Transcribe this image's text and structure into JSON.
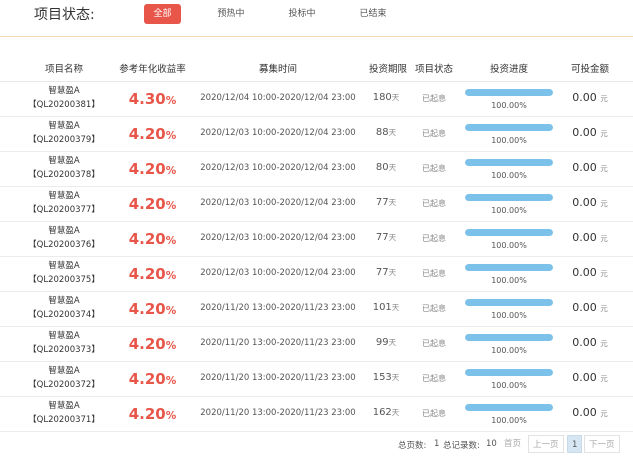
{
  "filter": {
    "label": "项目状态:",
    "options": [
      "全部",
      "预热中",
      "投标中",
      "已结束"
    ],
    "active": "全部"
  },
  "table": {
    "headers": [
      "项目名称",
      "参考年化收益率",
      "募集时间",
      "投资期限",
      "项目状态",
      "投资进度",
      "可投金额"
    ],
    "rows": [
      {
        "name": "智慧盈A",
        "code": "【QL20200381】",
        "rate": "4.30",
        "rate_unit": "%",
        "time": "2020/12/04 10:00-2020/12/04 23:00",
        "period": "180",
        "period_unit": "天",
        "status": "已起息",
        "progress": 100,
        "progress_text": "100.00%",
        "amount": "0.00",
        "amount_unit": "元"
      },
      {
        "name": "智慧盈A",
        "code": "【QL20200379】",
        "rate": "4.20",
        "rate_unit": "%",
        "time": "2020/12/03 10:00-2020/12/04 23:00",
        "period": "88",
        "period_unit": "天",
        "status": "已起息",
        "progress": 100,
        "progress_text": "100.00%",
        "amount": "0.00",
        "amount_unit": "元"
      },
      {
        "name": "智慧盈A",
        "code": "【QL20200378】",
        "rate": "4.20",
        "rate_unit": "%",
        "time": "2020/12/03 10:00-2020/12/04 23:00",
        "period": "80",
        "period_unit": "天",
        "status": "已起息",
        "progress": 100,
        "progress_text": "100.00%",
        "amount": "0.00",
        "amount_unit": "元"
      },
      {
        "name": "智慧盈A",
        "code": "【QL20200377】",
        "rate": "4.20",
        "rate_unit": "%",
        "time": "2020/12/03 10:00-2020/12/04 23:00",
        "period": "77",
        "period_unit": "天",
        "status": "已起息",
        "progress": 100,
        "progress_text": "100.00%",
        "amount": "0.00",
        "amount_unit": "元"
      },
      {
        "name": "智慧盈A",
        "code": "【QL20200376】",
        "rate": "4.20",
        "rate_unit": "%",
        "time": "2020/12/03 10:00-2020/12/04 23:00",
        "period": "77",
        "period_unit": "天",
        "status": "已起息",
        "progress": 100,
        "progress_text": "100.00%",
        "amount": "0.00",
        "amount_unit": "元"
      },
      {
        "name": "智慧盈A",
        "code": "【QL20200375】",
        "rate": "4.20",
        "rate_unit": "%",
        "time": "2020/12/03 10:00-2020/12/04 23:00",
        "period": "77",
        "period_unit": "天",
        "status": "已起息",
        "progress": 100,
        "progress_text": "100.00%",
        "amount": "0.00",
        "amount_unit": "元"
      },
      {
        "name": "智慧盈A",
        "code": "【QL20200374】",
        "rate": "4.20",
        "rate_unit": "%",
        "time": "2020/11/20 13:00-2020/11/23 23:00",
        "period": "101",
        "period_unit": "天",
        "status": "已起息",
        "progress": 100,
        "progress_text": "100.00%",
        "amount": "0.00",
        "amount_unit": "元"
      },
      {
        "name": "智慧盈A",
        "code": "【QL20200373】",
        "rate": "4.20",
        "rate_unit": "%",
        "time": "2020/11/20 13:00-2020/11/23 23:00",
        "period": "99",
        "period_unit": "天",
        "status": "已起息",
        "progress": 100,
        "progress_text": "100.00%",
        "amount": "0.00",
        "amount_unit": "元"
      },
      {
        "name": "智慧盈A",
        "code": "【QL20200372】",
        "rate": "4.20",
        "rate_unit": "%",
        "time": "2020/11/20 13:00-2020/11/23 23:00",
        "period": "153",
        "period_unit": "天",
        "status": "已起息",
        "progress": 100,
        "progress_text": "100.00%",
        "amount": "0.00",
        "amount_unit": "元"
      },
      {
        "name": "智慧盈A",
        "code": "【QL20200371】",
        "rate": "4.20",
        "rate_unit": "%",
        "time": "2020/11/20 13:00-2020/11/23 23:00",
        "period": "162",
        "period_unit": "天",
        "status": "已起息",
        "progress": 100,
        "progress_text": "100.00%",
        "amount": "0.00",
        "amount_unit": "元"
      }
    ]
  },
  "pager": {
    "total_pages_label": "总页数:",
    "total_pages": "1",
    "total_records_label": "总记录数:",
    "total_records": "10",
    "first": "首页",
    "prev": "上一页",
    "current": "1",
    "next": "下一页"
  },
  "colors": {
    "accent_red": "#e8564a",
    "progress_blue": "#7bc1ea"
  }
}
